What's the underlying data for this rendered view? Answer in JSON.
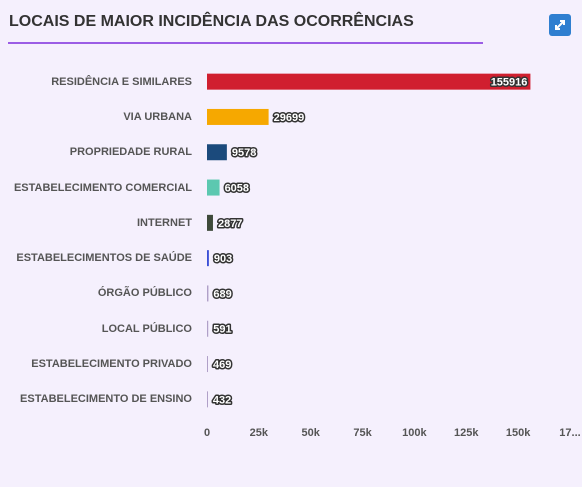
{
  "chart_data": {
    "type": "barh",
    "title": "LOCAIS DE MAIOR INCIDÊNCIA DAS OCORRÊNCIAS",
    "categories": [
      "RESIDÊNCIA E SIMILARES",
      "VIA URBANA",
      "PROPRIEDADE RURAL",
      "ESTABELECIMENTO COMERCIAL",
      "INTERNET",
      "ESTABELECIMENTOS DE SAÚDE",
      "ÓRGÃO PÚBLICO",
      "LOCAL PÚBLICO",
      "ESTABELECIMENTO PRIVADO",
      "ESTABELECIMENTO DE ENSINO"
    ],
    "values": [
      155916,
      29699,
      9578,
      6058,
      2877,
      903,
      689,
      591,
      469,
      432
    ],
    "colors": [
      "#d01f2f",
      "#f6a800",
      "#1b4a7c",
      "#5cc8b0",
      "#3e4a3a",
      "#3b4fd6",
      "#b0a0c8",
      "#b0a0c8",
      "#b0a0c8",
      "#b0a0c8"
    ],
    "xlim": [
      0,
      175000
    ],
    "xticks": [
      0,
      {
        "value": 25000,
        "label": "25k"
      },
      {
        "value": 50000,
        "label": "50k"
      },
      {
        "value": 75000,
        "label": "75k"
      },
      {
        "value": 100000,
        "label": "100k"
      },
      {
        "value": 125000,
        "label": "125k"
      },
      {
        "value": 150000,
        "label": "150k"
      },
      {
        "value": 175000,
        "label": "17..."
      }
    ]
  }
}
